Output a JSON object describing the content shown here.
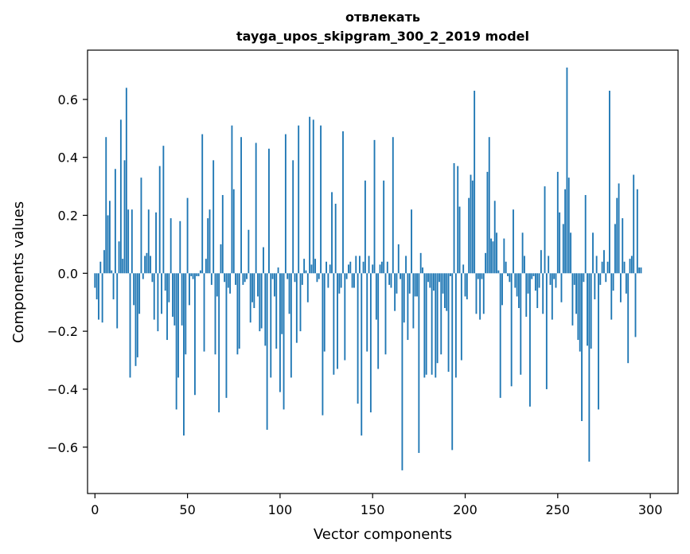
{
  "chart_data": {
    "type": "bar",
    "title": "отвлекать",
    "subtitle": "tayga_upos_skipgram_300_2_2019 model",
    "xlabel": "Vector components",
    "ylabel": "Components values",
    "xlim": [
      -4,
      315
    ],
    "ylim": [
      -0.76,
      0.77
    ],
    "xticks": [
      0,
      50,
      100,
      150,
      200,
      250,
      300
    ],
    "xtick_labels": [
      "0",
      "50",
      "100",
      "150",
      "200",
      "250",
      "300"
    ],
    "yticks": [
      -0.6,
      -0.4,
      -0.2,
      0.0,
      0.2,
      0.4,
      0.6
    ],
    "ytick_labels": [
      "−0.6",
      "−0.4",
      "−0.2",
      "0.0",
      "0.2",
      "0.4",
      "0.6"
    ],
    "bar_color": "#1f77b4",
    "grid": false,
    "series": [
      {
        "values": [
          -0.05,
          -0.09,
          -0.16,
          0.04,
          -0.17,
          0.08,
          0.47,
          0.2,
          0.25,
          0.01,
          -0.09,
          0.36,
          -0.19,
          0.11,
          0.53,
          0.05,
          0.39,
          0.64,
          0.22,
          -0.36,
          0.22,
          -0.11,
          -0.32,
          -0.29,
          -0.14,
          0.33,
          -0.02,
          0.06,
          0.07,
          0.22,
          0.06,
          -0.03,
          -0.16,
          0.21,
          -0.2,
          0.37,
          -0.14,
          0.44,
          -0.06,
          -0.23,
          -0.1,
          0.19,
          -0.15,
          -0.18,
          -0.47,
          -0.36,
          0.18,
          -0.18,
          -0.56,
          -0.28,
          0.26,
          -0.11,
          -0.01,
          -0.02,
          -0.42,
          -0.01,
          -0.01,
          0.01,
          0.48,
          -0.27,
          0.05,
          0.19,
          0.22,
          -0.04,
          0.39,
          -0.28,
          -0.08,
          -0.48,
          0.1,
          0.27,
          -0.03,
          -0.43,
          -0.05,
          -0.07,
          0.51,
          0.29,
          -0.04,
          -0.28,
          -0.26,
          0.47,
          -0.04,
          -0.03,
          -0.02,
          0.15,
          -0.17,
          -0.1,
          -0.12,
          0.45,
          -0.08,
          -0.2,
          -0.19,
          0.09,
          -0.25,
          -0.54,
          0.43,
          -0.36,
          -0.02,
          -0.08,
          -0.26,
          0.02,
          -0.41,
          -0.21,
          -0.47,
          0.48,
          -0.02,
          -0.14,
          -0.36,
          0.39,
          -0.03,
          -0.24,
          0.51,
          -0.2,
          -0.04,
          0.05,
          0.01,
          -0.1,
          0.54,
          0.03,
          0.53,
          0.05,
          -0.03,
          -0.02,
          0.51,
          -0.49,
          -0.27,
          0.04,
          -0.05,
          0.03,
          0.28,
          -0.35,
          0.24,
          -0.33,
          -0.07,
          -0.05,
          0.49,
          -0.3,
          -0.02,
          0.03,
          0.04,
          -0.05,
          -0.05,
          0.06,
          -0.45,
          0.06,
          -0.56,
          0.04,
          0.32,
          -0.27,
          0.06,
          -0.48,
          0.03,
          0.46,
          -0.16,
          -0.33,
          0.03,
          0.04,
          0.32,
          -0.28,
          0.04,
          -0.04,
          -0.05,
          0.47,
          -0.13,
          -0.07,
          0.1,
          -0.02,
          -0.68,
          -0.17,
          0.06,
          -0.23,
          -0.07,
          0.22,
          -0.19,
          -0.08,
          -0.08,
          -0.62,
          0.07,
          0.02,
          -0.36,
          -0.35,
          -0.03,
          -0.05,
          -0.35,
          -0.06,
          -0.36,
          -0.31,
          -0.03,
          -0.28,
          -0.07,
          -0.12,
          -0.13,
          -0.34,
          -0.01,
          -0.61,
          0.38,
          -0.36,
          0.37,
          0.23,
          -0.3,
          0.03,
          -0.08,
          -0.09,
          0.26,
          0.34,
          0.32,
          0.63,
          -0.14,
          -0.02,
          -0.16,
          -0.02,
          -0.14,
          0.07,
          0.35,
          0.47,
          0.12,
          0.11,
          0.25,
          0.14,
          0.01,
          -0.43,
          -0.11,
          0.12,
          0.04,
          -0.01,
          -0.03,
          -0.39,
          0.22,
          -0.05,
          -0.08,
          -0.12,
          -0.35,
          0.14,
          0.06,
          -0.15,
          -0.07,
          -0.46,
          -0.02,
          -0.01,
          -0.06,
          -0.12,
          -0.05,
          0.08,
          -0.14,
          0.3,
          -0.4,
          0.06,
          -0.04,
          -0.16,
          -0.02,
          -0.05,
          0.35,
          0.21,
          -0.1,
          0.17,
          0.29,
          0.71,
          0.33,
          0.14,
          -0.18,
          -0.04,
          -0.14,
          -0.23,
          -0.27,
          -0.51,
          -0.03,
          0.27,
          -0.25,
          -0.65,
          -0.26,
          0.14,
          -0.09,
          0.06,
          -0.47,
          -0.04,
          0.04,
          0.08,
          -0.03,
          0.04,
          0.63,
          -0.16,
          -0.06,
          0.17,
          0.26,
          0.31,
          -0.1,
          0.19,
          0.04,
          -0.07,
          -0.31,
          0.05,
          0.06,
          0.34,
          -0.22,
          0.29,
          0.02,
          0.02
        ]
      }
    ]
  }
}
